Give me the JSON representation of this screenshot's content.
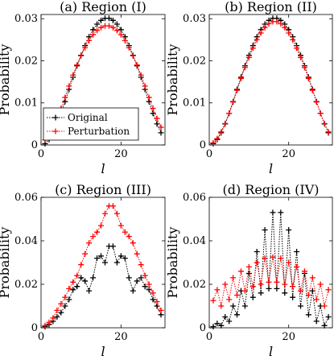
{
  "chart_data": [
    {
      "type": "line",
      "title": "(a) Region (I)",
      "xlabel": "l",
      "ylabel": "Probability",
      "xlim": [
        0,
        31
      ],
      "ylim": [
        0,
        0.031
      ],
      "xticks": [
        0,
        20
      ],
      "xtick_labels": [
        "0",
        "20"
      ],
      "yticks": [
        0,
        0.01,
        0.02,
        0.03
      ],
      "ytick_labels": [
        "0",
        "0.01",
        "0.02",
        "0.03"
      ],
      "legend": {
        "placement": "bottom-left",
        "entries": [
          "Original",
          "Perturbation"
        ]
      },
      "x": [
        1,
        2,
        3,
        4,
        5,
        6,
        7,
        8,
        9,
        10,
        11,
        12,
        13,
        14,
        15,
        16,
        17,
        18,
        19,
        20,
        21,
        22,
        23,
        24,
        25,
        26,
        27,
        28,
        29,
        30
      ],
      "series": [
        {
          "name": "Original",
          "color": "#000000",
          "values": [
            0.0003,
            0.0013,
            0.0029,
            0.005,
            0.0075,
            0.0103,
            0.0132,
            0.0161,
            0.0188,
            0.0213,
            0.0236,
            0.0257,
            0.0274,
            0.0287,
            0.0296,
            0.0301,
            0.0301,
            0.0296,
            0.0287,
            0.0274,
            0.0257,
            0.0236,
            0.0213,
            0.0188,
            0.0161,
            0.0132,
            0.0103,
            0.0075,
            0.005,
            0.0029
          ]
        },
        {
          "name": "Perturbation",
          "color": "#ff0000",
          "values": [
            0.0012,
            0.0025,
            0.0042,
            0.0063,
            0.0087,
            0.0113,
            0.014,
            0.0166,
            0.019,
            0.0212,
            0.0231,
            0.0248,
            0.0262,
            0.0272,
            0.0279,
            0.0283,
            0.0283,
            0.0279,
            0.0272,
            0.0262,
            0.0248,
            0.0231,
            0.0212,
            0.019,
            0.0166,
            0.014,
            0.0113,
            0.0087,
            0.0063,
            0.0042
          ]
        }
      ]
    },
    {
      "type": "line",
      "title": "(b) Region (II)",
      "xlabel": "l",
      "ylabel": "Probability",
      "xlim": [
        0,
        31
      ],
      "ylim": [
        0,
        0.031
      ],
      "xticks": [
        0,
        20
      ],
      "xtick_labels": [
        "0",
        "20"
      ],
      "yticks": [
        0,
        0.01,
        0.02,
        0.03
      ],
      "ytick_labels": [
        "0",
        "0.01",
        "0.02",
        "0.03"
      ],
      "x": [
        1,
        2,
        3,
        4,
        5,
        6,
        7,
        8,
        9,
        10,
        11,
        12,
        13,
        14,
        15,
        16,
        17,
        18,
        19,
        20,
        21,
        22,
        23,
        24,
        25,
        26,
        27,
        28,
        29,
        30
      ],
      "series": [
        {
          "name": "Original",
          "color": "#000000",
          "values": [
            0.0003,
            0.0013,
            0.0029,
            0.005,
            0.0075,
            0.0103,
            0.0132,
            0.0161,
            0.0188,
            0.0213,
            0.0236,
            0.0257,
            0.0274,
            0.0287,
            0.0296,
            0.0301,
            0.0301,
            0.0296,
            0.0287,
            0.0274,
            0.0257,
            0.0236,
            0.0213,
            0.0188,
            0.0161,
            0.0132,
            0.0103,
            0.0075,
            0.005,
            0.0029
          ]
        },
        {
          "name": "Perturbation",
          "color": "#ff0000",
          "values": [
            0.0005,
            0.0015,
            0.0031,
            0.0051,
            0.0075,
            0.0102,
            0.013,
            0.0158,
            0.0184,
            0.0208,
            0.023,
            0.025,
            0.0266,
            0.0279,
            0.0288,
            0.0293,
            0.0293,
            0.0288,
            0.0279,
            0.0266,
            0.025,
            0.023,
            0.0208,
            0.0184,
            0.0158,
            0.013,
            0.0102,
            0.0075,
            0.0051,
            0.0031
          ]
        }
      ]
    },
    {
      "type": "line",
      "title": "(c) Region (III)",
      "xlabel": "l",
      "ylabel": "Probability",
      "xlim": [
        0,
        31
      ],
      "ylim": [
        0,
        0.06
      ],
      "xticks": [
        0,
        20
      ],
      "xtick_labels": [
        "0",
        "20"
      ],
      "yticks": [
        0,
        0.02,
        0.04,
        0.06
      ],
      "ytick_labels": [
        "0",
        "0.02",
        "0.04",
        "0.06"
      ],
      "x": [
        1,
        2,
        3,
        4,
        5,
        6,
        7,
        8,
        9,
        10,
        11,
        12,
        13,
        14,
        15,
        16,
        17,
        18,
        19,
        20,
        21,
        22,
        23,
        24,
        25,
        26,
        27,
        28,
        29,
        30
      ],
      "series": [
        {
          "name": "Original",
          "color": "#000000",
          "values": [
            0.0005,
            0.0015,
            0.003,
            0.005,
            0.007,
            0.01,
            0.013,
            0.0175,
            0.019,
            0.023,
            0.0215,
            0.017,
            0.023,
            0.032,
            0.033,
            0.03,
            0.0375,
            0.0375,
            0.03,
            0.033,
            0.032,
            0.023,
            0.017,
            0.0215,
            0.023,
            0.019,
            0.0175,
            0.013,
            0.01,
            0.006
          ]
        },
        {
          "name": "Perturbation",
          "color": "#ff0000",
          "values": [
            0.001,
            0.0025,
            0.0045,
            0.008,
            0.011,
            0.014,
            0.018,
            0.021,
            0.024,
            0.029,
            0.034,
            0.039,
            0.042,
            0.044,
            0.047,
            0.0525,
            0.056,
            0.056,
            0.0525,
            0.047,
            0.044,
            0.042,
            0.039,
            0.034,
            0.029,
            0.024,
            0.02,
            0.016,
            0.012,
            0.008
          ]
        }
      ]
    },
    {
      "type": "line",
      "title": "(d) Region (IV)",
      "xlabel": "l",
      "ylabel": "Probability",
      "xlim": [
        0,
        31
      ],
      "ylim": [
        0,
        0.06
      ],
      "xticks": [
        0,
        20
      ],
      "xtick_labels": [
        "0",
        "20"
      ],
      "yticks": [
        0,
        0.02,
        0.04,
        0.06
      ],
      "ytick_labels": [
        "0",
        "0.02",
        "0.04",
        "0.06"
      ],
      "x": [
        1,
        2,
        3,
        4,
        5,
        6,
        7,
        8,
        9,
        10,
        11,
        12,
        13,
        14,
        15,
        16,
        17,
        18,
        19,
        20,
        21,
        22,
        23,
        24,
        25,
        26,
        27,
        28,
        29,
        30
      ],
      "series": [
        {
          "name": "Original",
          "color": "#000000",
          "values": [
            0.0005,
            0.002,
            0.001,
            0.005,
            0.003,
            0.01,
            0.006,
            0.017,
            0.01,
            0.025,
            0.014,
            0.035,
            0.016,
            0.045,
            0.018,
            0.053,
            0.018,
            0.053,
            0.016,
            0.045,
            0.014,
            0.035,
            0.01,
            0.025,
            0.006,
            0.017,
            0.003,
            0.01,
            0.001,
            0.005
          ]
        },
        {
          "name": "Perturbation",
          "color": "#ff0000",
          "values": [
            0.0125,
            0.0175,
            0.01,
            0.02,
            0.013,
            0.023,
            0.015,
            0.026,
            0.017,
            0.028,
            0.019,
            0.03,
            0.02,
            0.032,
            0.021,
            0.0325,
            0.021,
            0.032,
            0.02,
            0.03,
            0.019,
            0.028,
            0.017,
            0.026,
            0.015,
            0.023,
            0.013,
            0.02,
            0.01,
            0.0175
          ]
        }
      ]
    }
  ]
}
